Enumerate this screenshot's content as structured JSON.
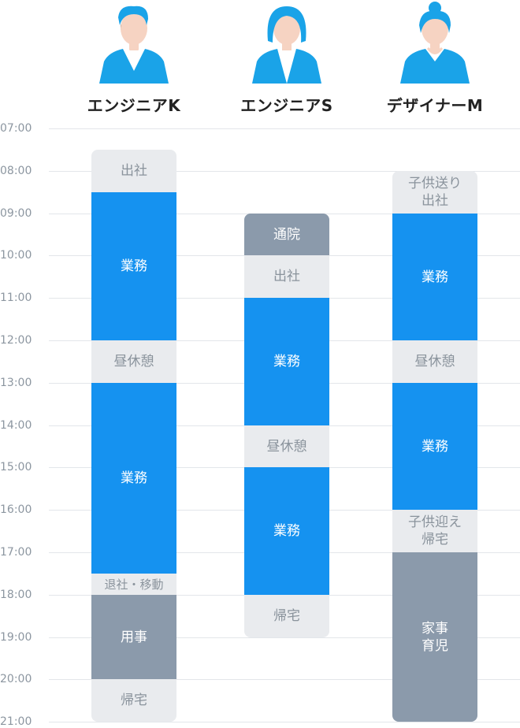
{
  "time_axis": {
    "start_hour": 7,
    "end_hour": 21,
    "labels": [
      "07:00",
      "08:00",
      "09:00",
      "10:00",
      "11:00",
      "12:00",
      "13:00",
      "14:00",
      "15:00",
      "16:00",
      "17:00",
      "18:00",
      "19:00",
      "20:00",
      "21:00"
    ]
  },
  "colors": {
    "work": "#1592f0",
    "light": "#e9ebee",
    "gray": "#8b9aab",
    "avatar": "#1aa3e8"
  },
  "people": [
    {
      "name": "エンジニアK",
      "avatar": "male-glasses-avatar-icon",
      "blocks": [
        {
          "lines": [
            "出社"
          ],
          "start": 7.5,
          "end": 8.5,
          "kind": "light"
        },
        {
          "lines": [
            "業務"
          ],
          "start": 8.5,
          "end": 12.0,
          "kind": "work"
        },
        {
          "lines": [
            "昼休憩"
          ],
          "start": 12.0,
          "end": 13.0,
          "kind": "light"
        },
        {
          "lines": [
            "業務"
          ],
          "start": 13.0,
          "end": 17.5,
          "kind": "work"
        },
        {
          "lines": [
            "退社・移動"
          ],
          "start": 17.5,
          "end": 18.0,
          "kind": "light",
          "small": true
        },
        {
          "lines": [
            "用事"
          ],
          "start": 18.0,
          "end": 20.0,
          "kind": "gray"
        },
        {
          "lines": [
            "帰宅"
          ],
          "start": 20.0,
          "end": 21.0,
          "kind": "light"
        }
      ]
    },
    {
      "name": "エンジニアS",
      "avatar": "female-avatar-icon",
      "blocks": [
        {
          "lines": [
            "通院"
          ],
          "start": 9.0,
          "end": 10.0,
          "kind": "gray"
        },
        {
          "lines": [
            "出社"
          ],
          "start": 10.0,
          "end": 11.0,
          "kind": "light"
        },
        {
          "lines": [
            "業務"
          ],
          "start": 11.0,
          "end": 14.0,
          "kind": "work"
        },
        {
          "lines": [
            "昼休憩"
          ],
          "start": 14.0,
          "end": 15.0,
          "kind": "light"
        },
        {
          "lines": [
            "業務"
          ],
          "start": 15.0,
          "end": 18.0,
          "kind": "work"
        },
        {
          "lines": [
            "帰宅"
          ],
          "start": 18.0,
          "end": 19.0,
          "kind": "light"
        }
      ]
    },
    {
      "name": "デザイナーM",
      "avatar": "female-bun-avatar-icon",
      "blocks": [
        {
          "lines": [
            "子供送り",
            "出社"
          ],
          "start": 8.0,
          "end": 9.0,
          "kind": "light"
        },
        {
          "lines": [
            "業務"
          ],
          "start": 9.0,
          "end": 12.0,
          "kind": "work"
        },
        {
          "lines": [
            "昼休憩"
          ],
          "start": 12.0,
          "end": 13.0,
          "kind": "light"
        },
        {
          "lines": [
            "業務"
          ],
          "start": 13.0,
          "end": 16.0,
          "kind": "work"
        },
        {
          "lines": [
            "子供迎え",
            "帰宅"
          ],
          "start": 16.0,
          "end": 17.0,
          "kind": "light"
        },
        {
          "lines": [
            "家事",
            "育児"
          ],
          "start": 17.0,
          "end": 21.0,
          "kind": "gray"
        }
      ]
    }
  ]
}
